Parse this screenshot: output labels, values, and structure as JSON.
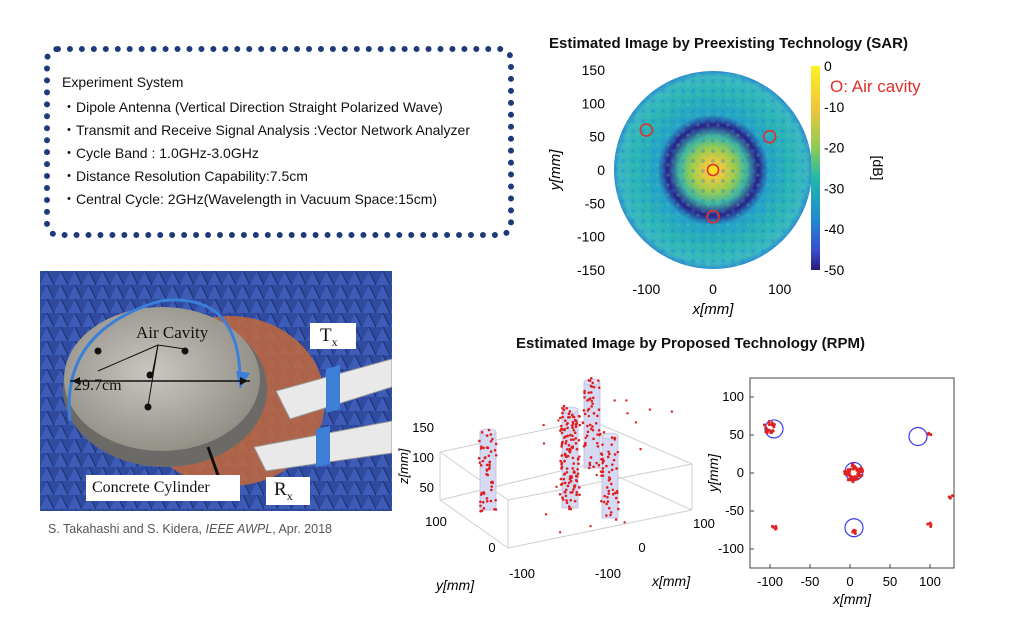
{
  "experiment": {
    "title": "Experiment System",
    "bullet": "・",
    "items": [
      "Dipole Antenna (Vertical Direction Straight Polarized Wave)",
      "Transmit and Receive Signal Analysis :Vector Network Analyzer",
      "Cycle Band : 1.0GHz-3.0GHz",
      "Distance Resolution Capability:7.5cm",
      "Central Cycle: 2GHz(Wavelength in Vacuum Space:15cm)"
    ]
  },
  "photo": {
    "air_cavity_label": "Air Cavity",
    "diameter_label": "29.7cm",
    "concrete_label": "Concrete Cylinder",
    "tx_label": "T",
    "tx_sub": "x",
    "rx_label": "R",
    "rx_sub": "x"
  },
  "citation": {
    "authors": "S. Takahashi and S. Kidera, ",
    "journal": "IEEE AWPL",
    "date": ", Apr. 2018"
  },
  "sar": {
    "title": "Estimated Image by Preexisting Technology (SAR)",
    "legend": "O: Air cavity",
    "xlabel": "x[mm]",
    "ylabel": "y[mm]",
    "colorbar_label": "[dB]",
    "colorbar_ticks": [
      "0",
      "-10",
      "-20",
      "-30",
      "-40",
      "-50"
    ],
    "xticks": [
      "-100",
      "0",
      "100"
    ],
    "yticks": [
      "150",
      "100",
      "50",
      "0",
      "-50",
      "-100",
      "-150"
    ],
    "colors": {
      "high": "#f9e022",
      "mid": "#22b8b0",
      "low": "#2a1f8a",
      "legend": "#e0302a"
    }
  },
  "rpm": {
    "title": "Estimated Image by Proposed Technology (RPM)",
    "plot3d": {
      "zlabel": "z[mm]",
      "ylabel": "y[mm]",
      "xlabel": "x[mm]",
      "zticks": [
        "150",
        "100",
        "50"
      ],
      "yticks": [
        "100",
        "0",
        "-100"
      ],
      "xticks": [
        "100",
        "0",
        "-100"
      ]
    },
    "plot2d": {
      "xlabel": "x[mm]",
      "ylabel": "y[mm]",
      "xticks": [
        "-100",
        "-50",
        "0",
        "50",
        "100"
      ],
      "yticks": [
        "100",
        "50",
        "0",
        "-50",
        "-100"
      ]
    },
    "colors": {
      "points": "#e02020",
      "circles": "#3a3af0"
    }
  },
  "chart_data": [
    {
      "type": "heatmap",
      "title": "Estimated Image by Preexisting Technology (SAR)",
      "xlabel": "x[mm]",
      "ylabel": "y[mm]",
      "xlim": [
        -150,
        150
      ],
      "ylim": [
        -150,
        150
      ],
      "colorbar_range": [
        -50,
        0
      ],
      "colorbar_label": "[dB]",
      "air_cavities": [
        {
          "x": -100,
          "y": 60
        },
        {
          "x": 85,
          "y": 50
        },
        {
          "x": 0,
          "y": 0
        },
        {
          "x": 0,
          "y": -70
        }
      ]
    },
    {
      "type": "scatter",
      "title": "Estimated Image by Proposed Technology (RPM)",
      "xlabel": "x[mm]",
      "ylabel": "y[mm]",
      "xlim": [
        -125,
        130
      ],
      "ylim": [
        -125,
        125
      ],
      "circles": [
        {
          "x": -95,
          "y": 58
        },
        {
          "x": 85,
          "y": 48
        },
        {
          "x": 5,
          "y": 2
        },
        {
          "x": 5,
          "y": -72
        }
      ],
      "clusters": [
        {
          "x": -100,
          "y": 60,
          "spread": 8,
          "count": 20
        },
        {
          "x": 5,
          "y": 0,
          "spread": 12,
          "count": 55
        },
        {
          "x": -95,
          "y": -72,
          "spread": 3,
          "count": 5
        },
        {
          "x": 5,
          "y": -78,
          "spread": 3,
          "count": 6
        },
        {
          "x": 100,
          "y": 52,
          "spread": 2,
          "count": 3
        },
        {
          "x": 100,
          "y": -68,
          "spread": 3,
          "count": 4
        },
        {
          "x": 125,
          "y": -30,
          "spread": 4,
          "count": 3
        }
      ]
    }
  ]
}
